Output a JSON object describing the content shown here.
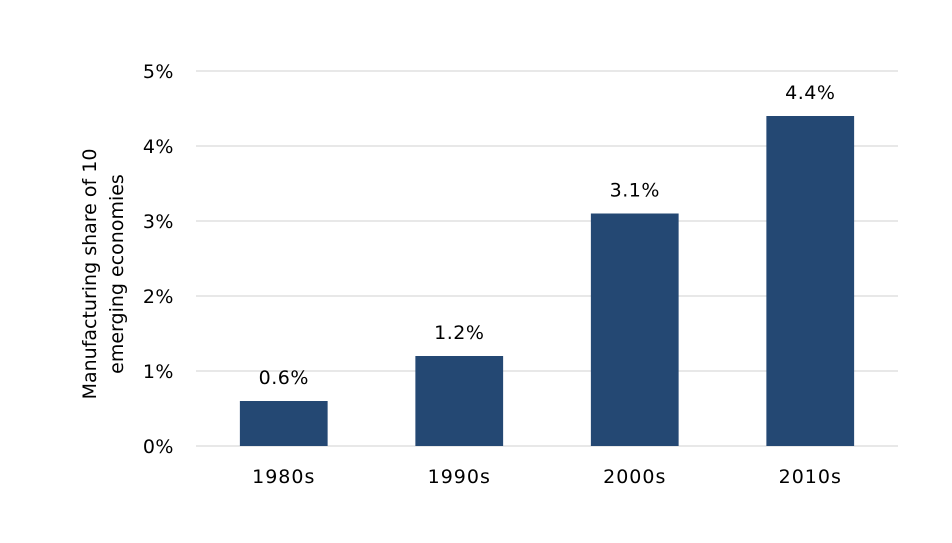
{
  "chart_data": {
    "type": "bar",
    "categories": [
      "1980s",
      "1990s",
      "2000s",
      "2010s"
    ],
    "values": [
      0.6,
      1.2,
      3.1,
      4.4
    ],
    "data_labels": [
      "0.6%",
      "1.2%",
      "3.1%",
      "4.4%"
    ],
    "title": "",
    "xlabel": "",
    "ylabel_lines": [
      "Manufacturing share of 10",
      "emerging economies"
    ],
    "ylim": [
      0,
      5
    ],
    "yticks": [
      0,
      1,
      2,
      3,
      4,
      5
    ],
    "ytick_labels": [
      "0%",
      "1%",
      "2%",
      "3%",
      "4%",
      "5%"
    ],
    "grid": true,
    "legend": "none",
    "bar_color": "#244873"
  }
}
